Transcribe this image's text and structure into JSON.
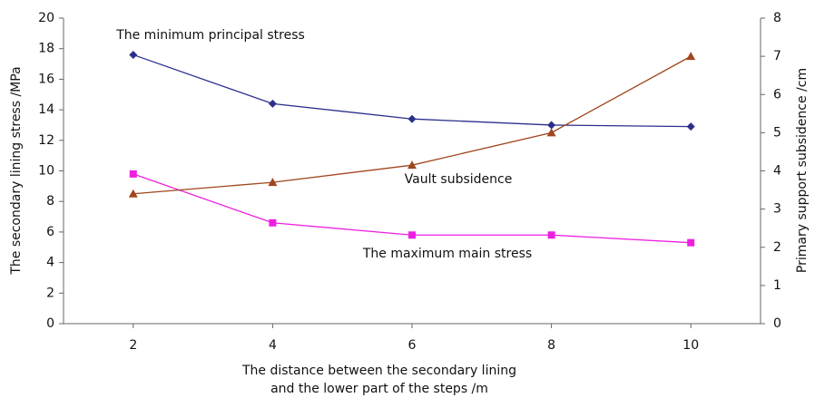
{
  "chart_data": {
    "type": "line",
    "x_label": [
      "The distance between the secondary lining",
      "and the lower part of the steps /m"
    ],
    "y_label": "The secondary lining stress /MPa",
    "y2_label": "Primary support subsidence /cm",
    "x": [
      2,
      4,
      6,
      8,
      10
    ],
    "xlim": [
      1,
      11
    ],
    "xticks": [
      2,
      4,
      6,
      8,
      10
    ],
    "ylim": [
      0,
      20
    ],
    "yticks": [
      0,
      2,
      4,
      6,
      8,
      10,
      12,
      14,
      16,
      18,
      20
    ],
    "y2lim": [
      0,
      8
    ],
    "y2ticks": [
      0,
      1,
      2,
      3,
      4,
      5,
      6,
      7,
      8
    ],
    "grid": false,
    "series": [
      {
        "name": "The minimum principal stress",
        "color": "#2b2f8c",
        "marker": "diamond",
        "values": [
          17.6,
          14.4,
          13.4,
          13.0,
          12.9
        ]
      },
      {
        "name": "The maximum main stress",
        "color": "#ee1fe0",
        "marker": "square",
        "values": [
          9.8,
          6.6,
          5.8,
          5.8,
          5.3
        ]
      },
      {
        "name": "Vault subsidence",
        "color": "#a0461e",
        "marker": "triangle",
        "axis": "y2",
        "values": [
          3.4,
          3.7,
          4.15,
          5.0,
          7.0
        ]
      }
    ]
  }
}
